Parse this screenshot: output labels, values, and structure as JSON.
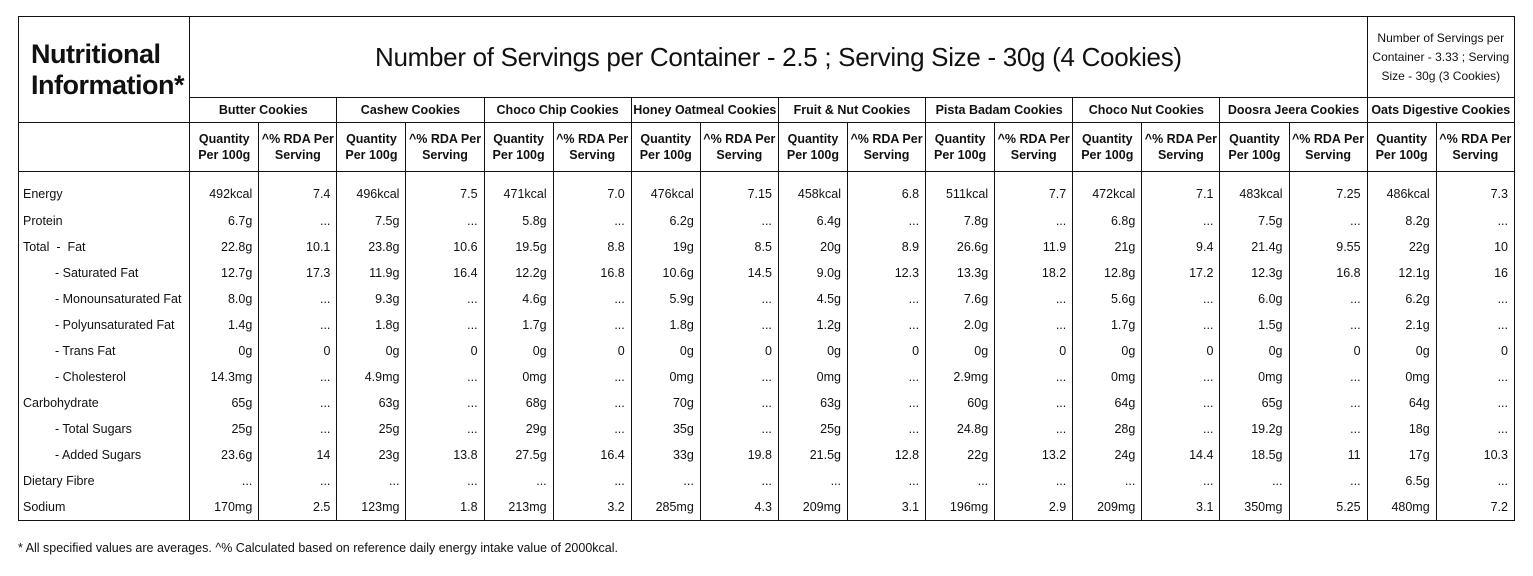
{
  "title": "Nutritional Information*",
  "servings_main": "Number of Servings per Container - 2.5 ; Serving Size - 30g (4 Cookies)",
  "servings_oats": "Number of Servings per Container - 3.33 ; Serving Size - 30g (3 Cookies)",
  "col_qty_label": "Quantity Per 100g",
  "col_rda_label": "^% RDA Per Serving",
  "products": [
    "Butter Cookies",
    "Cashew Cookies",
    "Choco Chip Cookies",
    "Honey Oatmeal Cookies",
    "Fruit & Nut Cookies",
    "Pista Badam Cookies",
    "Choco Nut Cookies",
    "Doosra Jeera Cookies",
    "Oats Digestive Cookies"
  ],
  "rows": [
    {
      "label": "Energy",
      "indent": false,
      "cells": [
        [
          "492kcal",
          "7.4"
        ],
        [
          "496kcal",
          "7.5"
        ],
        [
          "471kcal",
          "7.0"
        ],
        [
          "476kcal",
          "7.15"
        ],
        [
          "458kcal",
          "6.8"
        ],
        [
          "511kcal",
          "7.7"
        ],
        [
          "472kcal",
          "7.1"
        ],
        [
          "483kcal",
          "7.25"
        ],
        [
          "486kcal",
          "7.3"
        ]
      ]
    },
    {
      "label": "Protein",
      "indent": false,
      "cells": [
        [
          "6.7g",
          "..."
        ],
        [
          "7.5g",
          "..."
        ],
        [
          "5.8g",
          "..."
        ],
        [
          "6.2g",
          "..."
        ],
        [
          "6.4g",
          "..."
        ],
        [
          "7.8g",
          "..."
        ],
        [
          "6.8g",
          "..."
        ],
        [
          "7.5g",
          "..."
        ],
        [
          "8.2g",
          "..."
        ]
      ]
    },
    {
      "label": "Total  -  Fat",
      "indent": false,
      "cells": [
        [
          "22.8g",
          "10.1"
        ],
        [
          "23.8g",
          "10.6"
        ],
        [
          "19.5g",
          "8.8"
        ],
        [
          "19g",
          "8.5"
        ],
        [
          "20g",
          "8.9"
        ],
        [
          "26.6g",
          "11.9"
        ],
        [
          "21g",
          "9.4"
        ],
        [
          "21.4g",
          "9.55"
        ],
        [
          "22g",
          "10"
        ]
      ]
    },
    {
      "label": "- Saturated Fat",
      "indent": true,
      "cells": [
        [
          "12.7g",
          "17.3"
        ],
        [
          "11.9g",
          "16.4"
        ],
        [
          "12.2g",
          "16.8"
        ],
        [
          "10.6g",
          "14.5"
        ],
        [
          "9.0g",
          "12.3"
        ],
        [
          "13.3g",
          "18.2"
        ],
        [
          "12.8g",
          "17.2"
        ],
        [
          "12.3g",
          "16.8"
        ],
        [
          "12.1g",
          "16"
        ]
      ]
    },
    {
      "label": "- Monounsaturated Fat",
      "indent": true,
      "cells": [
        [
          "8.0g",
          "..."
        ],
        [
          "9.3g",
          "..."
        ],
        [
          "4.6g",
          "..."
        ],
        [
          "5.9g",
          "..."
        ],
        [
          "4.5g",
          "..."
        ],
        [
          "7.6g",
          "..."
        ],
        [
          "5.6g",
          "..."
        ],
        [
          "6.0g",
          "..."
        ],
        [
          "6.2g",
          "..."
        ]
      ]
    },
    {
      "label": "- Polyunsaturated Fat",
      "indent": true,
      "cells": [
        [
          "1.4g",
          "..."
        ],
        [
          "1.8g",
          "..."
        ],
        [
          "1.7g",
          "..."
        ],
        [
          "1.8g",
          "..."
        ],
        [
          "1.2g",
          "..."
        ],
        [
          "2.0g",
          "..."
        ],
        [
          "1.7g",
          "..."
        ],
        [
          "1.5g",
          "..."
        ],
        [
          "2.1g",
          "..."
        ]
      ]
    },
    {
      "label": "- Trans Fat",
      "indent": true,
      "cells": [
        [
          "0g",
          "0"
        ],
        [
          "0g",
          "0"
        ],
        [
          "0g",
          "0"
        ],
        [
          "0g",
          "0"
        ],
        [
          "0g",
          "0"
        ],
        [
          "0g",
          "0"
        ],
        [
          "0g",
          "0"
        ],
        [
          "0g",
          "0"
        ],
        [
          "0g",
          "0"
        ]
      ]
    },
    {
      "label": "- Cholesterol",
      "indent": true,
      "cells": [
        [
          "14.3mg",
          "..."
        ],
        [
          "4.9mg",
          "..."
        ],
        [
          "0mg",
          "..."
        ],
        [
          "0mg",
          "..."
        ],
        [
          "0mg",
          "..."
        ],
        [
          "2.9mg",
          "..."
        ],
        [
          "0mg",
          "..."
        ],
        [
          "0mg",
          "..."
        ],
        [
          "0mg",
          "..."
        ]
      ]
    },
    {
      "label": "Carbohydrate",
      "indent": false,
      "cells": [
        [
          "65g",
          "..."
        ],
        [
          "63g",
          "..."
        ],
        [
          "68g",
          "..."
        ],
        [
          "70g",
          "..."
        ],
        [
          "63g",
          "..."
        ],
        [
          "60g",
          "..."
        ],
        [
          "64g",
          "..."
        ],
        [
          "65g",
          "..."
        ],
        [
          "64g",
          "..."
        ]
      ]
    },
    {
      "label": "- Total Sugars",
      "indent": true,
      "cells": [
        [
          "25g",
          "..."
        ],
        [
          "25g",
          "..."
        ],
        [
          "29g",
          "..."
        ],
        [
          "35g",
          "..."
        ],
        [
          "25g",
          "..."
        ],
        [
          "24.8g",
          "..."
        ],
        [
          "28g",
          "..."
        ],
        [
          "19.2g",
          "..."
        ],
        [
          "18g",
          "..."
        ]
      ]
    },
    {
      "label": "- Added Sugars",
      "indent": true,
      "cells": [
        [
          "23.6g",
          "14"
        ],
        [
          "23g",
          "13.8"
        ],
        [
          "27.5g",
          "16.4"
        ],
        [
          "33g",
          "19.8"
        ],
        [
          "21.5g",
          "12.8"
        ],
        [
          "22g",
          "13.2"
        ],
        [
          "24g",
          "14.4"
        ],
        [
          "18.5g",
          "11"
        ],
        [
          "17g",
          "10.3"
        ]
      ]
    },
    {
      "label": "Dietary Fibre",
      "indent": false,
      "cells": [
        [
          "...",
          "..."
        ],
        [
          "...",
          "..."
        ],
        [
          "...",
          "..."
        ],
        [
          "...",
          "..."
        ],
        [
          "...",
          "..."
        ],
        [
          "...",
          "..."
        ],
        [
          "...",
          "..."
        ],
        [
          "...",
          "..."
        ],
        [
          "6.5g",
          "..."
        ]
      ]
    },
    {
      "label": "Sodium",
      "indent": false,
      "cells": [
        [
          "170mg",
          "2.5"
        ],
        [
          "123mg",
          "1.8"
        ],
        [
          "213mg",
          "3.2"
        ],
        [
          "285mg",
          "4.3"
        ],
        [
          "209mg",
          "3.1"
        ],
        [
          "196mg",
          "2.9"
        ],
        [
          "209mg",
          "3.1"
        ],
        [
          "350mg",
          "5.25"
        ],
        [
          "480mg",
          "7.2"
        ]
      ]
    }
  ],
  "footnote": "* All specified values are averages. ^% Calculated based on reference daily energy intake value of 2000kcal."
}
